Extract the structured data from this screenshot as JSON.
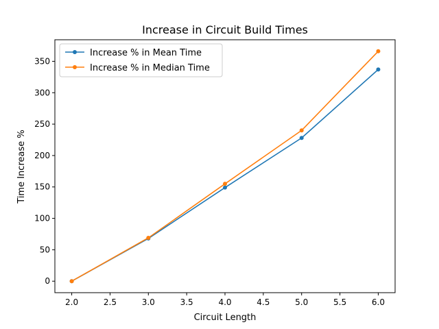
{
  "chart_data": {
    "type": "line",
    "title": "Increase in Circuit Build Times",
    "xlabel": "Circuit Length",
    "ylabel": "Time Increase %",
    "x": [
      2.0,
      3.0,
      4.0,
      5.0,
      6.0
    ],
    "series": [
      {
        "name": "Increase % in Mean Time",
        "color": "#1f77b4",
        "values": [
          0,
          68,
          149,
          228,
          337
        ]
      },
      {
        "name": "Increase % in Median Time",
        "color": "#ff7f0e",
        "values": [
          0,
          69,
          155,
          240,
          366
        ]
      }
    ],
    "xlim": [
      1.78,
      6.22
    ],
    "ylim": [
      -18.3,
      384.3
    ],
    "xticks": [
      "2.0",
      "2.5",
      "3.0",
      "3.5",
      "4.0",
      "4.5",
      "5.0",
      "5.5",
      "6.0"
    ],
    "yticks": [
      "0",
      "50",
      "100",
      "150",
      "200",
      "250",
      "300",
      "350"
    ],
    "legend_position": "upper-left",
    "grid": false
  }
}
